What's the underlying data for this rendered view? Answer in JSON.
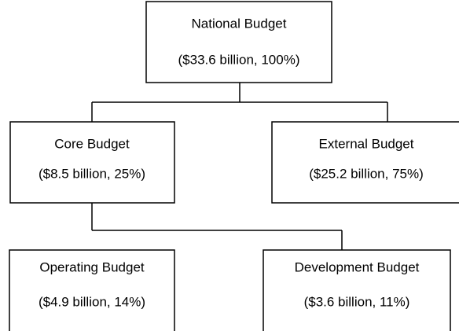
{
  "nodes": [
    {
      "label": "National Budget",
      "detail": "($33.6 billion, 100%)"
    },
    {
      "label": "Core Budget",
      "detail": "($8.5 billion, 25%)"
    },
    {
      "label": "External Budget",
      "detail": "($25.2 billion, 75%)"
    },
    {
      "label": "Operating Budget",
      "detail": "($4.9 billion, 14%)"
    },
    {
      "label": "Development Budget",
      "detail": "($3.6 billion, 11%)"
    }
  ]
}
